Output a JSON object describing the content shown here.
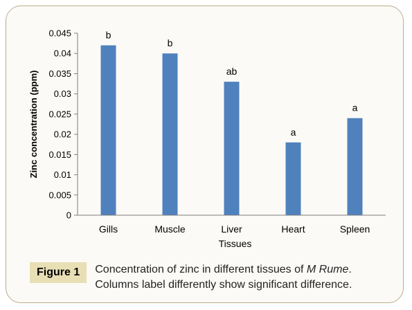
{
  "chart_data": {
    "type": "bar",
    "categories": [
      "Gills",
      "Muscle",
      "Liver",
      "Heart",
      "Spleen"
    ],
    "values": [
      0.042,
      0.04,
      0.033,
      0.018,
      0.024
    ],
    "bar_labels": [
      "b",
      "b",
      "ab",
      "a",
      "a"
    ],
    "xlabel": "Tissues",
    "ylabel": "Zinc concentration (ppm)",
    "ylim": [
      0,
      0.045
    ],
    "yticks": [
      "0",
      "0.005",
      "0.01",
      "0.015",
      "0.02",
      "0.025",
      "0.03",
      "0.035",
      "0.04",
      "0.045"
    ],
    "bar_color": "#4f81bd",
    "grid": false,
    "legend": "none"
  },
  "caption": {
    "label": "Figure 1",
    "line1_a": "Concentration of zinc in different tissues of ",
    "line1_italic": "M Rume",
    "line1_b": ".",
    "line2": "Columns label differently show significant difference."
  },
  "colors": {
    "frame_border": "#b9ad8a",
    "label_background": "#e8dfb5"
  }
}
